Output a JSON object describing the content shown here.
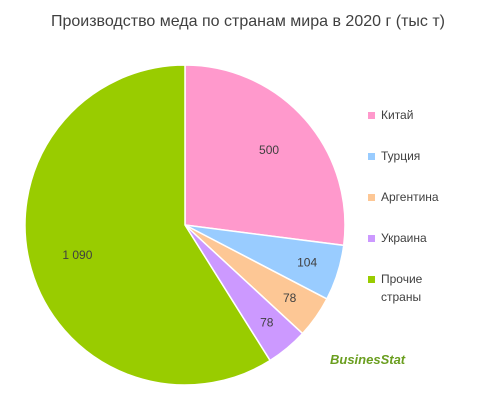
{
  "chart_data": {
    "type": "pie",
    "title": "Производство меда по странам мира в 2020 г (тыс т)",
    "categories": [
      "Китай",
      "Турция",
      "Аргентина",
      "Украина",
      "Прочие страны"
    ],
    "values": [
      500,
      104,
      78,
      78,
      1090
    ],
    "value_labels": [
      "500",
      "104",
      "78",
      "78",
      "1 090"
    ],
    "colors": [
      "#ff99cc",
      "#99ccff",
      "#fdc795",
      "#cc99ff",
      "#99cc00"
    ],
    "legend": "right",
    "watermark": "BusinesStat"
  }
}
